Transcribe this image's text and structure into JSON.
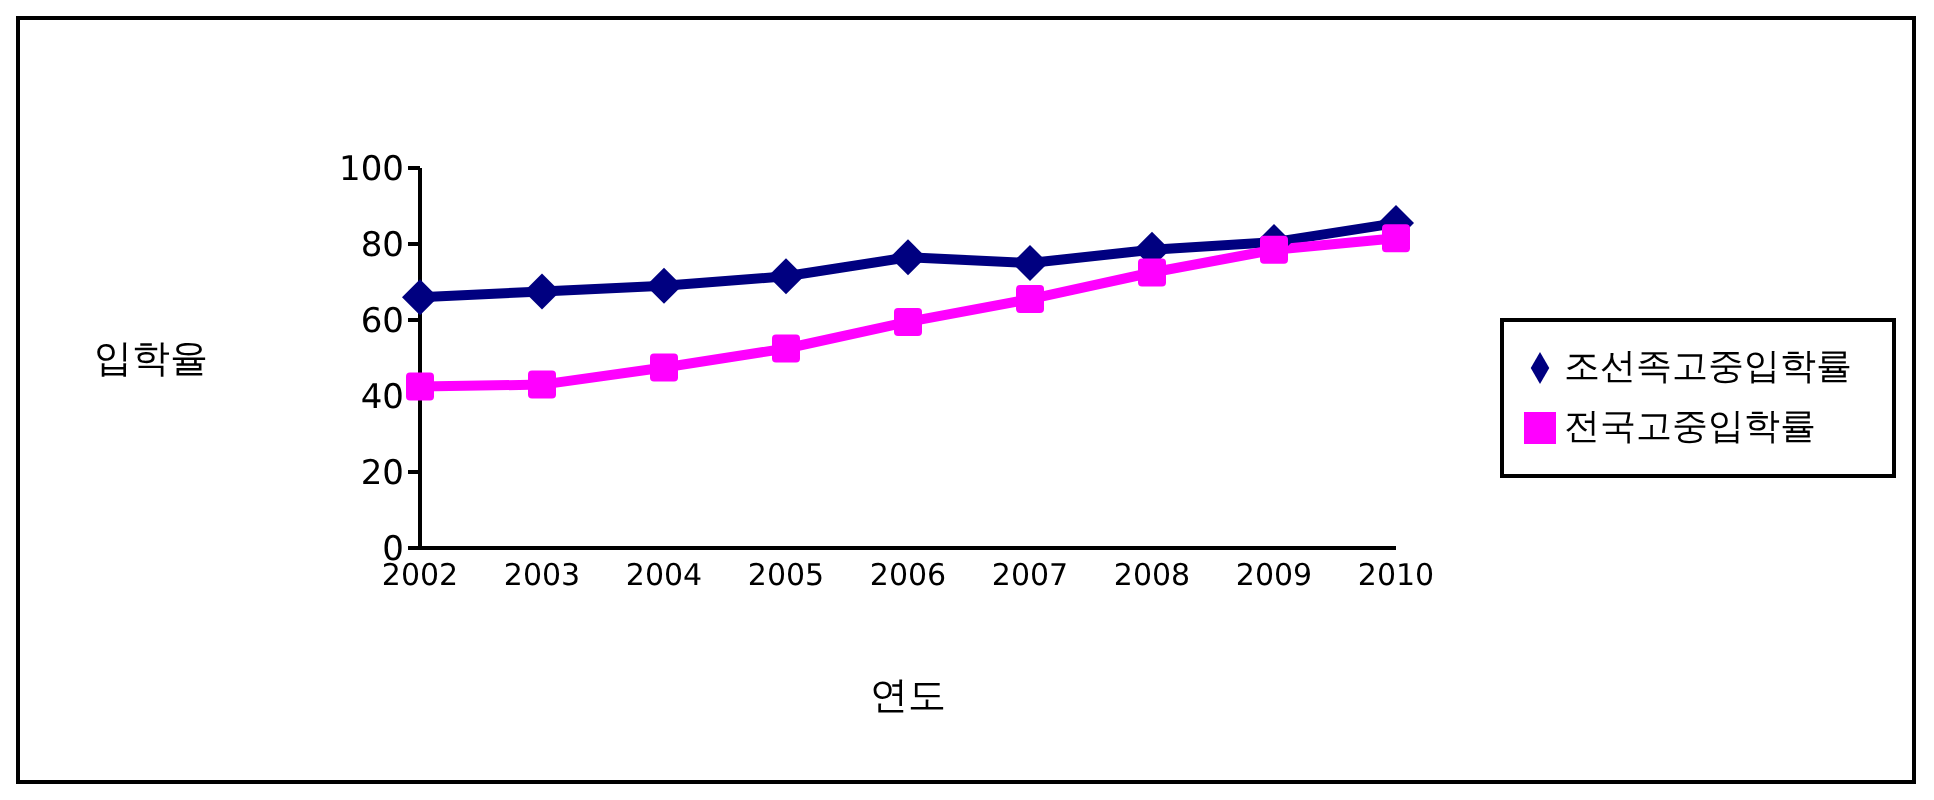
{
  "chart_data": {
    "type": "line",
    "xlabel": "연도",
    "ylabel": "입학율",
    "categories": [
      "2002",
      "2003",
      "2004",
      "2005",
      "2006",
      "2007",
      "2008",
      "2009",
      "2010"
    ],
    "series": [
      {
        "name": "조선족고중입학률",
        "color": "#000080",
        "marker": "diamond",
        "values": [
          66,
          67.5,
          69,
          71.5,
          76.5,
          75,
          78.5,
          80.5,
          85.5
        ]
      },
      {
        "name": "전국고중입학률",
        "color": "#ff00ff",
        "marker": "square",
        "values": [
          42.5,
          43,
          47.5,
          52.5,
          59.5,
          65.5,
          72.5,
          78.5,
          81.5
        ]
      }
    ],
    "ylim": [
      0,
      100
    ],
    "yticks": [
      0,
      20,
      40,
      60,
      80,
      100
    ],
    "grid": false,
    "legend": "right",
    "line_style": "solid"
  }
}
